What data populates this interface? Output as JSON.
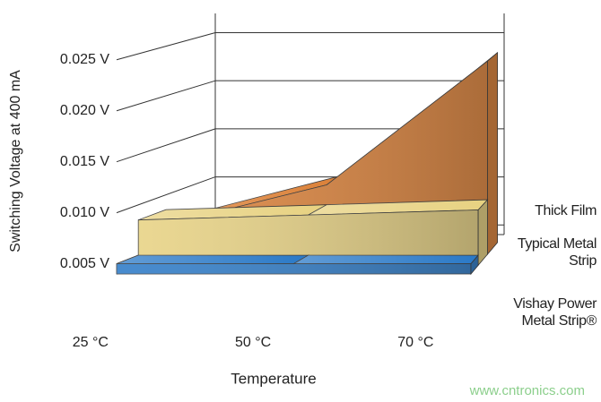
{
  "chart_data": {
    "type": "area3d",
    "y_label": "Switching Voltage at 400 mA",
    "x_label": "Temperature",
    "categories": [
      "25 °C",
      "50 °C",
      "70 °C"
    ],
    "series": [
      {
        "name": "Thick Film",
        "color": "#d9782a",
        "values": [
          0.007,
          0.011,
          0.0235
        ]
      },
      {
        "name": "Typical Metal Strip",
        "color": "#e6cf7a",
        "values": [
          0.0085,
          0.009,
          0.0095
        ]
      },
      {
        "name": "Vishay Power Metal Strip®",
        "color": "#1f72c4",
        "values": [
          0.005,
          0.005,
          0.005
        ]
      }
    ],
    "ylim": [
      0.004,
      0.027
    ],
    "yticks": [
      {
        "value": 0.005,
        "label": "0.005 V"
      },
      {
        "value": 0.01,
        "label": "0.010 V"
      },
      {
        "value": 0.015,
        "label": "0.015 V"
      },
      {
        "value": 0.02,
        "label": "0.020 V"
      },
      {
        "value": 0.025,
        "label": "0.025 V"
      }
    ],
    "grid": true,
    "watermark": "www.cntronics.com"
  }
}
